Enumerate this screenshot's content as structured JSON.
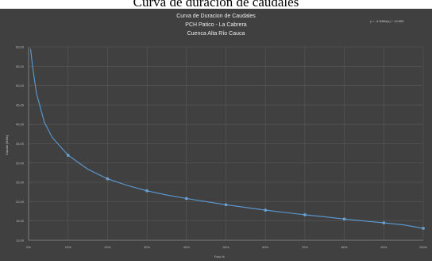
{
  "caption": "Curva de duracion de caudales",
  "eq": "y = -4.308ln(x) + 10.655",
  "chart_data": {
    "type": "line",
    "title_lines": [
      "Curva de Duracion de Caudales",
      "PCH Patico - La Cabrera",
      "Cuenca Alta Río Cauca"
    ],
    "xlabel": "Frec.%",
    "ylabel": "Caudal (M3/s)",
    "x_ticks": [
      "0%",
      "10%",
      "20%",
      "30%",
      "40%",
      "50%",
      "60%",
      "70%",
      "80%",
      "90%",
      "100%"
    ],
    "y_ticks": [
      "10,00",
      "15,00",
      "20,00",
      "25,00",
      "30,00",
      "35,00",
      "40,00",
      "45,00",
      "50,00",
      "55,00",
      "60,00"
    ],
    "xlim": [
      0,
      100
    ],
    "ylim": [
      10,
      60
    ],
    "grid": true,
    "series": [
      {
        "color": "#5b9bd5",
        "x": [
          0.5,
          1,
          2,
          4,
          6,
          10,
          15,
          20,
          25,
          30,
          35,
          40,
          45,
          50,
          55,
          60,
          65,
          70,
          75,
          80,
          85,
          90,
          95,
          100
        ],
        "y": [
          59.5,
          55.0,
          48.0,
          40.5,
          36.6,
          32.0,
          28.4,
          25.9,
          24.2,
          22.8,
          21.7,
          20.8,
          20.0,
          19.2,
          18.5,
          17.8,
          17.2,
          16.6,
          16.1,
          15.5,
          15.0,
          14.5,
          14.0,
          13.1
        ],
        "markers_x": [
          10,
          20,
          30,
          40,
          50,
          60,
          70,
          80,
          90,
          100
        ],
        "markers_y": [
          32.0,
          25.9,
          22.8,
          20.8,
          19.2,
          17.8,
          16.6,
          15.5,
          14.5,
          13.1
        ]
      }
    ]
  }
}
